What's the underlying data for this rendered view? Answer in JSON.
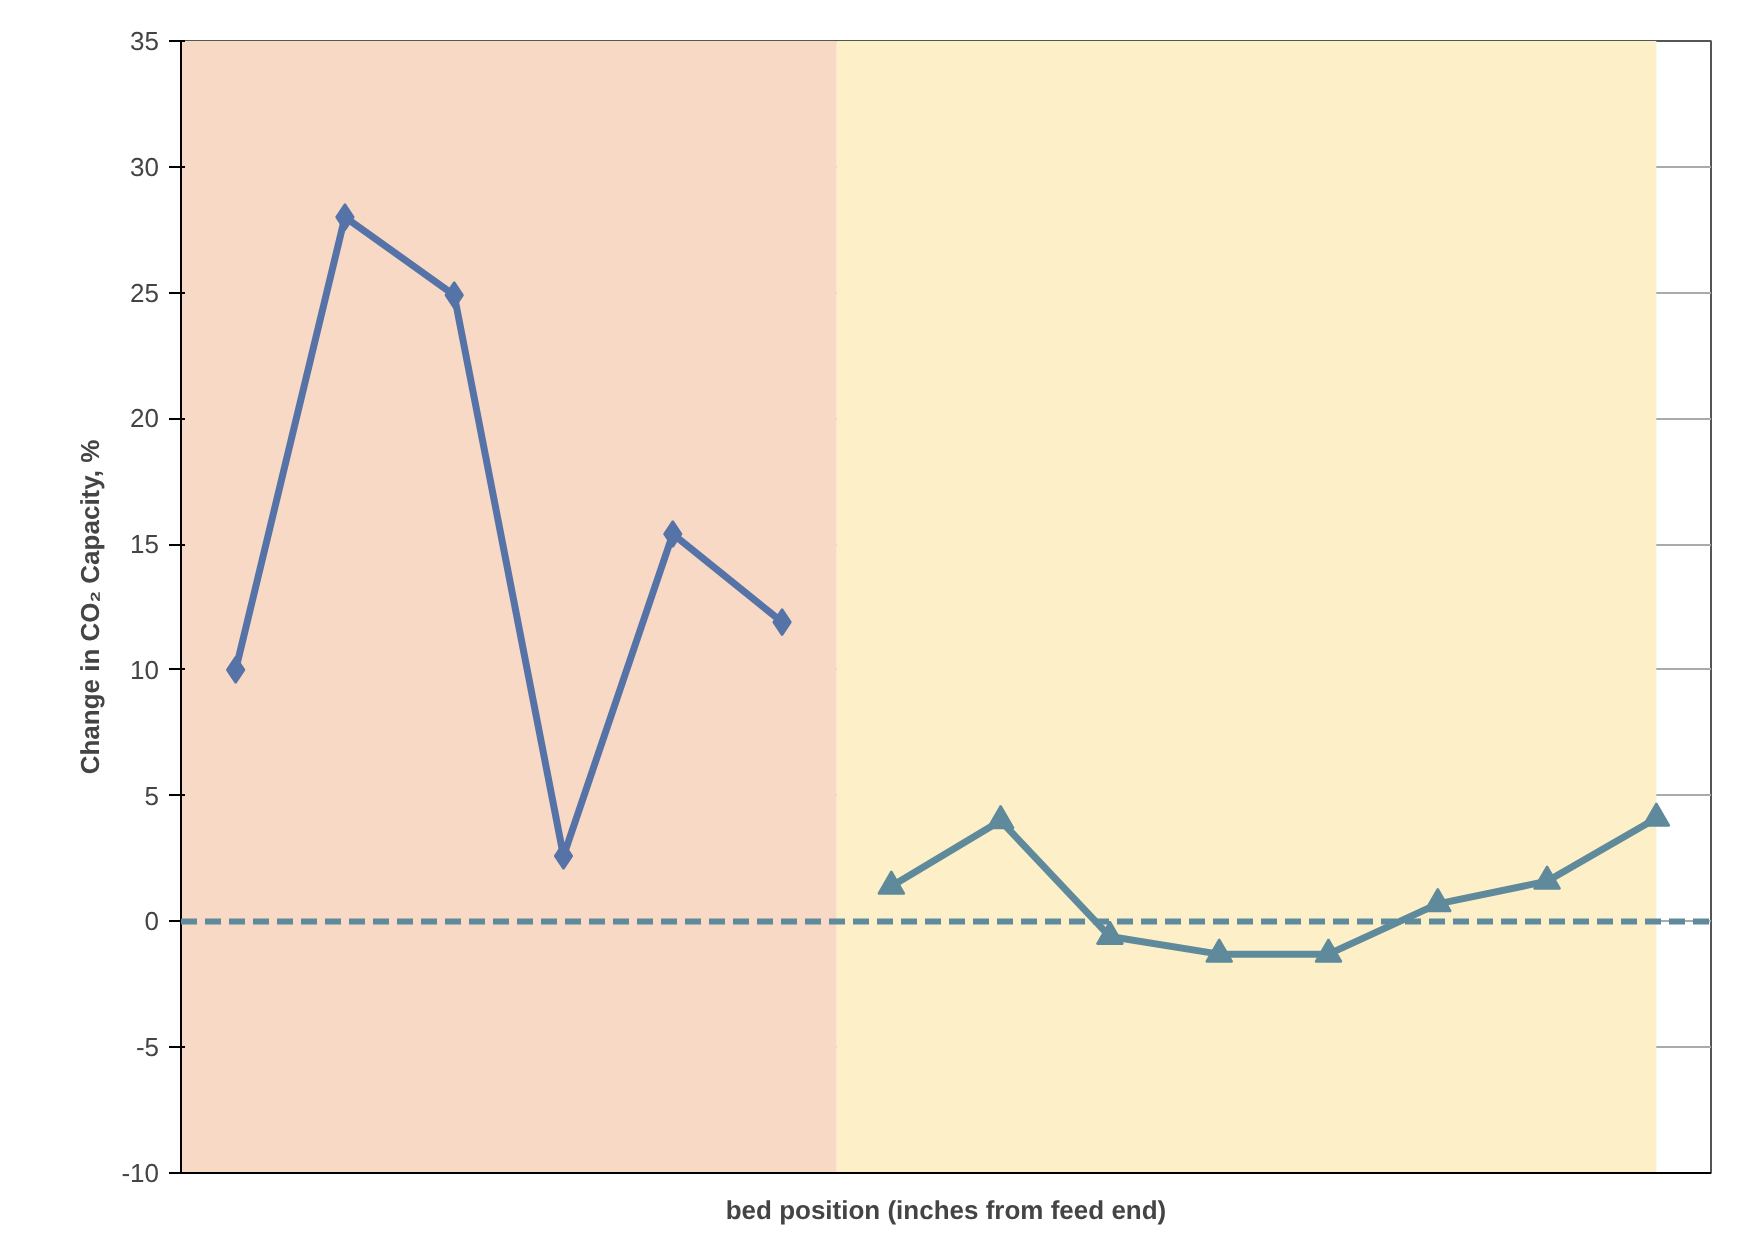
{
  "chart_data": {
    "type": "line",
    "xlabel": "bed position (inches from feed end)",
    "ylabel": "Change in CO₂ Capacity, %",
    "categories": [
      null,
      null,
      null,
      null,
      null,
      null,
      null,
      null,
      null,
      null,
      null,
      null,
      null,
      null
    ],
    "ylim": [
      -10,
      35
    ],
    "yticks": [
      -10,
      -5,
      0,
      5,
      10,
      15,
      20,
      25,
      30,
      35
    ],
    "tick_labels": "y",
    "grid": "y",
    "series": [
      {
        "color": "#5673a8",
        "marker": "diamond",
        "values": [
          10.0,
          28.0,
          24.9,
          2.6,
          15.4,
          11.9,
          null,
          null,
          null,
          null,
          null,
          null,
          null,
          null
        ]
      },
      {
        "color": "#5f8a9b",
        "marker": "triangle",
        "values": [
          null,
          null,
          null,
          null,
          null,
          null,
          1.4,
          4.0,
          -0.6,
          -1.3,
          -1.3,
          0.7,
          1.6,
          4.1
        ]
      }
    ],
    "ref_lines": [
      {
        "axis": "y",
        "value": 0,
        "color": "#5f8a9b",
        "line_style": "dashed"
      }
    ]
  }
}
